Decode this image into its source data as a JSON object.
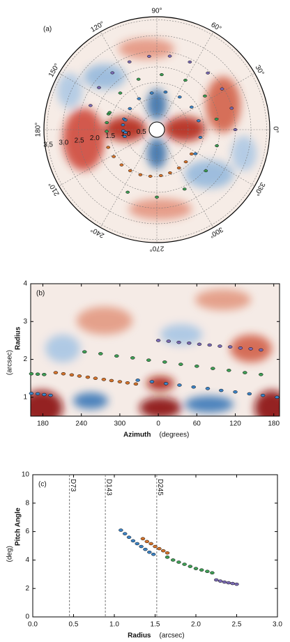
{
  "chart_data": [
    {
      "type": "polar",
      "panel_label": "(a)",
      "rlim": [
        0,
        3.6
      ],
      "rticks": [
        0.5,
        {
          "value": 1,
          "label": "1.0"
        },
        1.5,
        {
          "value": 2,
          "label": "2.0"
        },
        2.5,
        {
          "value": 3,
          "label": "3.0"
        },
        3.5
      ],
      "angle_ticks": [
        {
          "value": 0,
          "label": "0°"
        },
        {
          "value": 30,
          "label": "30°"
        },
        {
          "value": 60,
          "label": "60°"
        },
        {
          "value": 90,
          "label": "90°"
        },
        {
          "value": 120,
          "label": "120°"
        },
        {
          "value": 150,
          "label": "150°"
        },
        {
          "value": 180,
          "label": "180°"
        },
        {
          "value": 210,
          "label": "210°"
        },
        {
          "value": 240,
          "label": "240°"
        },
        {
          "value": 270,
          "label": "270°"
        },
        {
          "value": 300,
          "label": "300°"
        },
        {
          "value": 330,
          "label": "330°"
        }
      ],
      "grid": true
    },
    {
      "type": "scatter",
      "panel_label": "(b)",
      "x_label": "Azimuth",
      "x_unit": "(degrees)",
      "y_label": "Radius",
      "y_unit": "(arcsec)",
      "xlim": [
        161,
        549
      ],
      "ylim": [
        0.5,
        4
      ],
      "xticks": [
        180,
        240,
        300,
        {
          "value": 360,
          "label": "0"
        },
        {
          "value": 420,
          "label": "60"
        },
        {
          "value": 480,
          "label": "120"
        },
        {
          "value": 540,
          "label": "180"
        }
      ],
      "yticks": [
        1,
        2,
        3,
        4
      ],
      "series": [
        {
          "color": "#7b6bb5",
          "x": [
            360,
            376,
            392,
            408,
            424,
            440,
            456,
            472,
            488,
            504,
            520
          ],
          "values": [
            2.5,
            2.48,
            2.45,
            2.43,
            2.4,
            2.38,
            2.35,
            2.33,
            2.3,
            2.28,
            2.25
          ]
        },
        {
          "color": "#3f9e55",
          "x": [
            162,
            172,
            182,
            null,
            245,
            270,
            295,
            320,
            345,
            370,
            395,
            420,
            445,
            470,
            495,
            520
          ],
          "values": [
            1.62,
            1.61,
            1.6,
            null,
            2.2,
            2.15,
            2.09,
            2.04,
            1.98,
            1.93,
            1.87,
            1.82,
            1.76,
            1.71,
            1.65,
            1.6
          ]
        },
        {
          "color": "#d6742c",
          "x": [
            200,
            212,
            225,
            237,
            250,
            262,
            275,
            287,
            300,
            312,
            325
          ],
          "values": [
            1.65,
            1.62,
            1.59,
            1.56,
            1.53,
            1.5,
            1.47,
            1.44,
            1.41,
            1.38,
            1.35
          ]
        },
        {
          "color": "#3d84c6",
          "x": [
            162,
            172,
            182,
            192,
            null,
            328,
            350,
            372,
            393,
            415,
            437,
            458,
            480,
            502,
            523,
            545
          ],
          "values": [
            1.1,
            1.09,
            1.07,
            1.05,
            null,
            1.45,
            1.41,
            1.36,
            1.32,
            1.27,
            1.23,
            1.18,
            1.14,
            1.09,
            1.05,
            1.0
          ]
        }
      ]
    },
    {
      "type": "scatter",
      "panel_label": "(c)",
      "x_label": "Radius",
      "x_unit": "(arcsec)",
      "y_label": "Pitch Angle",
      "y_unit": "(deg)",
      "xlim": [
        0,
        3
      ],
      "ylim": [
        0,
        10
      ],
      "xticks": [
        {
          "value": 0,
          "label": "0.0"
        },
        0.5,
        {
          "value": 1,
          "label": "1.0"
        },
        1.5,
        {
          "value": 2,
          "label": "2.0"
        },
        2.5,
        {
          "value": 3,
          "label": "3.0"
        }
      ],
      "yticks": [
        0,
        2,
        4,
        6,
        8,
        10
      ],
      "vlines": [
        {
          "x": 0.45,
          "label": "D73"
        },
        {
          "x": 0.89,
          "label": "D143"
        },
        {
          "x": 1.52,
          "label": "D245"
        }
      ],
      "series": [
        {
          "color": "#3d84c6",
          "x": [
            1.08,
            1.13,
            1.18,
            1.23,
            1.28,
            1.33,
            1.38,
            1.43,
            1.48
          ],
          "values": [
            6.1,
            5.85,
            5.6,
            5.35,
            5.15,
            4.95,
            4.75,
            4.55,
            4.4
          ]
        },
        {
          "color": "#d6742c",
          "x": [
            1.35,
            1.4,
            1.45,
            1.5,
            1.55,
            1.6,
            1.65
          ],
          "values": [
            5.5,
            5.3,
            5.15,
            4.95,
            4.8,
            4.65,
            4.5
          ]
        },
        {
          "color": "#3f9e55",
          "x": [
            1.65,
            1.72,
            1.79,
            1.86,
            1.93,
            2.0,
            2.07,
            2.14,
            2.2
          ],
          "values": [
            4.2,
            4.0,
            3.85,
            3.7,
            3.55,
            3.4,
            3.3,
            3.2,
            3.1
          ]
        },
        {
          "color": "#7b6bb5",
          "x": [
            2.25,
            2.3,
            2.35,
            2.4,
            2.45,
            2.5
          ],
          "values": [
            2.6,
            2.52,
            2.45,
            2.4,
            2.35,
            2.3
          ]
        }
      ]
    }
  ]
}
